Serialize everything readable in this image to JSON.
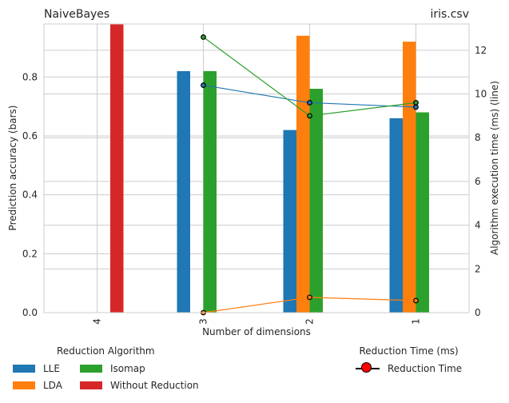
{
  "chart_data": {
    "type": "bar",
    "title_left": "NaiveBayes",
    "title_right": "iris.csv",
    "xlabel": "Number of dimensions",
    "ylabel": "Prediction accuracy (bars)",
    "y2label": "Algorithm execution time (ms) (line)",
    "categories": [
      "4",
      "3",
      "2",
      "1"
    ],
    "ylim": [
      0,
      0.98
    ],
    "y_ticks": [
      "0.0",
      "0.2",
      "0.4",
      "0.6",
      "0.8"
    ],
    "y2lim": [
      0,
      13.2
    ],
    "y2_ticks": [
      "0",
      "2",
      "4",
      "6",
      "8",
      "10",
      "12"
    ],
    "grid": true,
    "series": [
      {
        "name": "LLE",
        "color": "#1f77b4",
        "values": [
          null,
          0.82,
          0.62,
          0.66
        ]
      },
      {
        "name": "LDA",
        "color": "#ff7f0e",
        "values": [
          null,
          null,
          0.94,
          0.92
        ]
      },
      {
        "name": "Isomap",
        "color": "#2ca02c",
        "values": [
          null,
          0.82,
          0.76,
          0.68
        ]
      },
      {
        "name": "Without Reduction",
        "color": "#d62728",
        "values": [
          1.0,
          null,
          null,
          null
        ]
      }
    ],
    "time_series": [
      {
        "name": "LLE",
        "color": "#1f77b4",
        "values": [
          null,
          10.4,
          9.6,
          9.4
        ]
      },
      {
        "name": "LDA",
        "color": "#ff7f0e",
        "values": [
          null,
          0.0,
          0.7,
          0.55
        ]
      },
      {
        "name": "Isomap",
        "color": "#2ca02c",
        "values": [
          null,
          12.6,
          9.0,
          9.6
        ]
      }
    ]
  },
  "legend": {
    "algorithm_title": "Reduction Algorithm",
    "algorithm_items": [
      {
        "label": "LLE",
        "color": "#1f77b4"
      },
      {
        "label": "Isomap",
        "color": "#2ca02c"
      },
      {
        "label": "LDA",
        "color": "#ff7f0e"
      },
      {
        "label": "Without Reduction",
        "color": "#d62728"
      }
    ],
    "time_title": "Reduction Time (ms)",
    "time_item": "Reduction Time"
  }
}
